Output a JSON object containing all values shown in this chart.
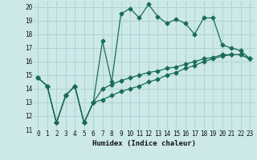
{
  "xlabel": "Humidex (Indice chaleur)",
  "ylabel": "",
  "bg_color": "#cce8e8",
  "grid_color": "#aacfcf",
  "line_color": "#1a6b5a",
  "xlim": [
    -0.5,
    23.5
  ],
  "ylim": [
    11,
    20.4
  ],
  "yticks": [
    11,
    12,
    13,
    14,
    15,
    16,
    17,
    18,
    19,
    20
  ],
  "xticks": [
    0,
    1,
    2,
    3,
    4,
    5,
    6,
    7,
    8,
    9,
    10,
    11,
    12,
    13,
    14,
    15,
    16,
    17,
    18,
    19,
    20,
    21,
    22,
    23
  ],
  "series": [
    [
      14.8,
      14.2,
      11.5,
      13.5,
      14.2,
      11.5,
      13.0,
      17.5,
      14.5,
      19.5,
      19.9,
      19.2,
      20.2,
      19.3,
      18.8,
      19.1,
      18.8,
      18.0,
      19.2,
      19.2,
      17.2,
      17.0,
      16.8,
      16.2
    ],
    [
      14.8,
      14.2,
      11.5,
      13.5,
      14.2,
      11.5,
      13.0,
      14.0,
      14.3,
      14.6,
      14.8,
      15.0,
      15.2,
      15.3,
      15.5,
      15.6,
      15.8,
      16.0,
      16.2,
      16.3,
      16.5,
      16.5,
      16.5,
      16.2
    ],
    [
      14.8,
      14.2,
      11.5,
      13.5,
      14.2,
      11.5,
      13.0,
      13.2,
      13.5,
      13.8,
      14.0,
      14.2,
      14.5,
      14.7,
      15.0,
      15.2,
      15.5,
      15.7,
      16.0,
      16.2,
      16.4,
      16.5,
      16.5,
      16.2
    ]
  ],
  "markersize": 2.5,
  "linewidth": 0.9,
  "tick_fontsize": 5.5,
  "xlabel_fontsize": 6.5
}
